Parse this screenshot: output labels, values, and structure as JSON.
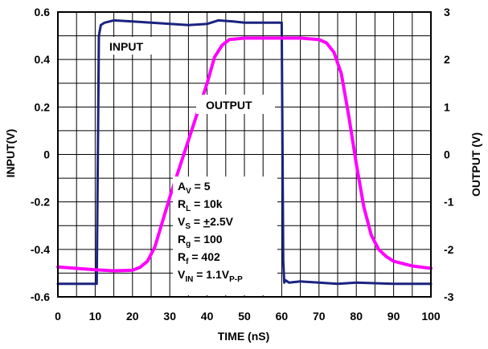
{
  "chart_data": {
    "type": "line",
    "xlabel": "TIME (nS)",
    "ylabel_left": "INPUT(V)",
    "ylabel_right": "OUTPUT (V)",
    "xlim": [
      0,
      100
    ],
    "ylim_left": [
      -0.6,
      0.6
    ],
    "ylim_right": [
      -3,
      3
    ],
    "grid": true,
    "x_ticks": [
      "0",
      "10",
      "20",
      "30",
      "40",
      "50",
      "60",
      "70",
      "80",
      "90",
      "100"
    ],
    "y_left_ticks": [
      "0.6",
      "0.4",
      "0.2",
      "0",
      "-0.2",
      "-0.4",
      "-0.6"
    ],
    "y_right_ticks": [
      "3",
      "2",
      "1",
      "0",
      "-1",
      "-2",
      "-3"
    ],
    "series": [
      {
        "name": "INPUT",
        "axis": "left",
        "color": "#1a237e",
        "x": [
          0,
          5,
          10.4,
          11,
          11.5,
          12.5,
          15,
          20,
          25,
          30,
          35,
          40,
          43,
          47,
          50,
          55,
          60,
          60.4,
          60.7,
          61,
          62,
          65,
          70,
          75,
          80,
          90,
          100
        ],
        "y": [
          -0.545,
          -0.545,
          -0.545,
          0.5,
          0.545,
          0.555,
          0.565,
          0.56,
          0.555,
          0.55,
          0.545,
          0.55,
          0.565,
          0.56,
          0.555,
          0.555,
          0.555,
          -0.45,
          -0.54,
          -0.53,
          -0.54,
          -0.535,
          -0.54,
          -0.545,
          -0.54,
          -0.545,
          -0.545
        ]
      },
      {
        "name": "OUTPUT",
        "axis": "right",
        "color": "#ff00ff",
        "x": [
          0,
          5,
          10,
          15,
          20,
          22,
          24,
          26,
          30,
          35,
          40,
          42,
          44,
          46,
          50,
          55,
          60,
          65,
          70,
          72,
          74,
          76,
          78,
          80,
          82,
          84,
          86,
          88,
          90,
          95,
          100
        ],
        "y": [
          -2.37,
          -2.4,
          -2.43,
          -2.45,
          -2.44,
          -2.38,
          -2.25,
          -1.95,
          -0.9,
          0.3,
          1.5,
          2.05,
          2.3,
          2.42,
          2.45,
          2.45,
          2.45,
          2.45,
          2.42,
          2.35,
          2.15,
          1.7,
          0.8,
          -0.2,
          -1.1,
          -1.7,
          -2.0,
          -2.15,
          -2.25,
          -2.35,
          -2.4
        ]
      }
    ],
    "annotations": {
      "input_label": "INPUT",
      "output_label": "OUTPUT",
      "params": [
        {
          "main": "A",
          "sub": "V",
          "rest": " = 5"
        },
        {
          "main": "R",
          "sub": "L",
          "rest": " = 10k"
        },
        {
          "main": "V",
          "sub": "S",
          "rest": " = ",
          "underline": "+",
          "rest2": "2.5V"
        },
        {
          "main": "R",
          "sub": "g",
          "rest": " = 100"
        },
        {
          "main": "R",
          "sub": "f",
          "rest": " = 402"
        },
        {
          "main": "V",
          "sub": "IN",
          "rest": " = 1.1V",
          "sub2": "P-P"
        }
      ]
    }
  }
}
